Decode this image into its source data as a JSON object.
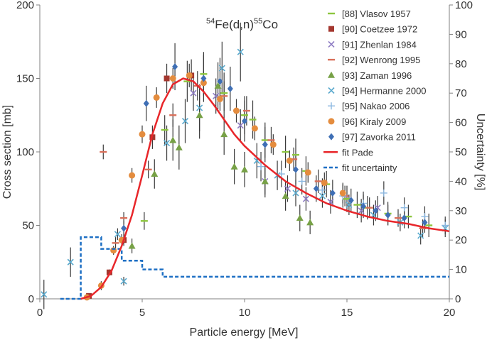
{
  "chart_data": {
    "type": "scatter",
    "title": {
      "prefix": "54",
      "part1": "Fe(d,n)",
      "mid": "55",
      "part2": "Co"
    },
    "xlabel": "Particle energy [MeV]",
    "ylabel": "Cross section [mb]",
    "y2label": "Uncertainty [%]",
    "xlim": [
      0,
      20
    ],
    "ylim": [
      0,
      200
    ],
    "y2lim": [
      0,
      100
    ],
    "xticks": [
      "0",
      "5",
      "10",
      "15",
      "20"
    ],
    "yticks": [
      "0",
      "50",
      "100",
      "150",
      "200"
    ],
    "y2ticks": [
      "0",
      "10",
      "20",
      "30",
      "40",
      "50",
      "60",
      "70",
      "80",
      "90",
      "100"
    ],
    "legend_position": "top-right",
    "series": [
      {
        "name": "[88] Vlasov 1957",
        "marker": "dash",
        "color": "#8dc63f",
        "points": [
          [
            5.1,
            53,
            6
          ],
          [
            6.1,
            115,
            10
          ],
          [
            7.2,
            148,
            14
          ],
          [
            8.0,
            153,
            15
          ],
          [
            9.0,
            140,
            14
          ],
          [
            10.0,
            125,
            13
          ],
          [
            10.4,
            122,
            13
          ],
          [
            11.0,
            108,
            12
          ],
          [
            12.0,
            100,
            11
          ],
          [
            12.5,
            98,
            11
          ],
          [
            13.0,
            87,
            10
          ],
          [
            14.0,
            78,
            9
          ],
          [
            15.0,
            68,
            9
          ],
          [
            15.5,
            64,
            9
          ],
          [
            16.0,
            62,
            8
          ],
          [
            17.0,
            58,
            8
          ],
          [
            18.0,
            56,
            8
          ],
          [
            19.0,
            50,
            8
          ]
        ]
      },
      {
        "name": "[90] Coetzee  1972",
        "marker": "square",
        "color": "#a4372f",
        "points": [
          [
            2.4,
            2,
            1
          ],
          [
            3.4,
            18,
            2
          ],
          [
            4.1,
            40,
            4
          ],
          [
            5.5,
            110,
            8
          ],
          [
            6.2,
            150,
            10
          ],
          [
            7.4,
            152,
            11
          ]
        ]
      },
      {
        "name": "[91] Zhenlan 1984",
        "marker": "x",
        "color": "#8e7cc3",
        "points": [
          [
            7.5,
            140,
            12
          ],
          [
            8.6,
            138,
            12
          ],
          [
            9.8,
            118,
            11
          ],
          [
            11.0,
            80,
            9
          ],
          [
            12.1,
            75,
            9
          ],
          [
            13.0,
            68,
            8
          ],
          [
            14.2,
            66,
            8
          ],
          [
            15.7,
            60,
            8
          ],
          [
            16.5,
            62,
            8
          ]
        ]
      },
      {
        "name": "[92] Wenrong 1995",
        "marker": "dash",
        "color": "#d9705b",
        "points": [
          [
            3.1,
            100,
            5
          ],
          [
            3.7,
            38,
            4
          ],
          [
            4.1,
            55,
            4
          ],
          [
            5.3,
            88,
            6
          ],
          [
            6.5,
            125,
            8
          ],
          [
            7.7,
            145,
            10
          ],
          [
            9.0,
            138,
            10
          ],
          [
            10.1,
            128,
            10
          ],
          [
            11.3,
            108,
            9
          ],
          [
            12.4,
            95,
            8
          ],
          [
            13.6,
            80,
            8
          ],
          [
            14.9,
            70,
            7
          ],
          [
            16.1,
            62,
            7
          ],
          [
            17.5,
            55,
            6
          ],
          [
            18.7,
            48,
            6
          ]
        ]
      },
      {
        "name": "[93] Zaman  1996",
        "marker": "triangle",
        "color": "#77a146",
        "points": [
          [
            4.5,
            36,
            5
          ],
          [
            5.6,
            85,
            10
          ],
          [
            6.5,
            108,
            14
          ],
          [
            6.8,
            103,
            15
          ],
          [
            7.8,
            125,
            16
          ],
          [
            8.7,
            145,
            16
          ],
          [
            9.0,
            112,
            14
          ],
          [
            9.5,
            90,
            12
          ],
          [
            10.0,
            88,
            12
          ],
          [
            11.0,
            80,
            11
          ],
          [
            12.0,
            70,
            10
          ],
          [
            12.7,
            55,
            9
          ],
          [
            13.2,
            52,
            8
          ]
        ]
      },
      {
        "name": "[94] Hermanne 2000",
        "marker": "x",
        "color": "#5aa9cd",
        "points": [
          [
            0.2,
            3,
            10
          ],
          [
            1.5,
            25,
            10
          ],
          [
            3.8,
            44,
            4
          ],
          [
            4.1,
            12,
            3
          ],
          [
            6.2,
            106,
            12
          ],
          [
            7.1,
            121,
            15
          ],
          [
            7.8,
            130,
            16
          ],
          [
            8.9,
            157,
            18
          ],
          [
            9.8,
            168,
            20
          ],
          [
            10.6,
            94,
            12
          ],
          [
            11.6,
            84,
            10
          ],
          [
            12.5,
            72,
            9
          ],
          [
            13.8,
            70,
            8
          ],
          [
            15.1,
            64,
            7
          ],
          [
            16.3,
            57,
            7
          ],
          [
            17.6,
            52,
            6
          ],
          [
            18.6,
            43,
            6
          ],
          [
            19.8,
            48,
            6
          ]
        ]
      },
      {
        "name": "[95] Nakao 2006",
        "marker": "plus",
        "color": "#8cb8e0",
        "points": [
          [
            10.8,
            90,
            10
          ],
          [
            11.8,
            85,
            9
          ],
          [
            12.8,
            80,
            9
          ],
          [
            13.8,
            74,
            8
          ],
          [
            14.8,
            70,
            8
          ],
          [
            15.8,
            65,
            8
          ],
          [
            16.8,
            72,
            8
          ],
          [
            17.8,
            62,
            7
          ],
          [
            18.8,
            56,
            7
          ],
          [
            19.8,
            50,
            6
          ]
        ]
      },
      {
        "name": "[96] Kiraly 2009",
        "marker": "circle",
        "color": "#e48c3e",
        "points": [
          [
            2.3,
            1,
            2
          ],
          [
            3.0,
            9,
            3
          ],
          [
            3.6,
            33,
            3
          ],
          [
            4.0,
            40,
            4
          ],
          [
            4.5,
            84,
            5
          ],
          [
            5.0,
            112,
            6
          ],
          [
            5.7,
            137,
            7
          ],
          [
            6.5,
            150,
            7
          ],
          [
            7.3,
            152,
            8
          ],
          [
            8.0,
            147,
            8
          ],
          [
            8.8,
            136,
            8
          ],
          [
            9.6,
            128,
            8
          ],
          [
            10.5,
            116,
            8
          ],
          [
            11.4,
            105,
            7
          ],
          [
            12.2,
            94,
            7
          ],
          [
            13.1,
            86,
            7
          ],
          [
            13.9,
            79,
            7
          ],
          [
            14.8,
            72,
            7
          ]
        ]
      },
      {
        "name": "[97] Zavorka 2011",
        "marker": "diamond",
        "color": "#3f6fb5",
        "points": [
          [
            4.1,
            48,
            5
          ],
          [
            5.2,
            133,
            12
          ],
          [
            6.6,
            158,
            16
          ],
          [
            8.0,
            150,
            16
          ],
          [
            8.8,
            148,
            16
          ],
          [
            9.3,
            143,
            15
          ],
          [
            10.0,
            121,
            14
          ],
          [
            11.0,
            105,
            12
          ],
          [
            12.5,
            88,
            10
          ],
          [
            13.5,
            75,
            9
          ],
          [
            14.3,
            72,
            9
          ],
          [
            15.2,
            67,
            8
          ],
          [
            15.8,
            63,
            8
          ],
          [
            16.4,
            60,
            7
          ],
          [
            17.0,
            57,
            7
          ],
          [
            17.8,
            55,
            7
          ],
          [
            18.8,
            52,
            7
          ]
        ]
      }
    ],
    "fit": {
      "name": "fit Pade",
      "color": "#e8262a",
      "x": [
        2.0,
        2.5,
        3.0,
        3.5,
        4.0,
        4.5,
        5.0,
        5.5,
        6.0,
        6.5,
        7.0,
        7.5,
        8.0,
        8.5,
        9.0,
        9.5,
        10.0,
        11.0,
        12.0,
        13.0,
        14.0,
        15.0,
        16.0,
        17.0,
        18.0,
        19.0,
        20.0
      ],
      "y": [
        0,
        2,
        8,
        19,
        36,
        57,
        84,
        112,
        133,
        146,
        150,
        148,
        141,
        132,
        122,
        112,
        104,
        91,
        80,
        72,
        65,
        60,
        56,
        53,
        51,
        48,
        46
      ]
    },
    "uncertainty": {
      "name": "fit uncertainty",
      "color": "#1d6fc4",
      "x": [
        1.0,
        2.0,
        2.0,
        3.0,
        3.0,
        4.0,
        4.0,
        5.0,
        5.0,
        6.0,
        6.0,
        20.0
      ],
      "y": [
        0,
        0,
        21,
        21,
        17,
        17,
        13,
        13,
        10,
        10,
        7.5,
        7.5
      ]
    }
  }
}
